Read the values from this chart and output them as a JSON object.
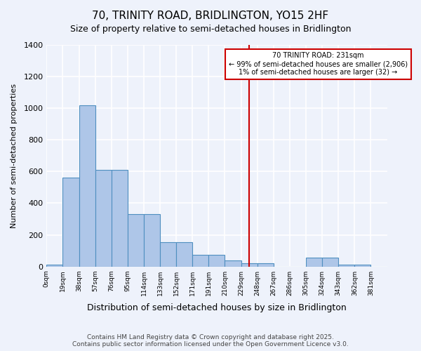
{
  "title": "70, TRINITY ROAD, BRIDLINGTON, YO15 2HF",
  "subtitle": "Size of property relative to semi-detached houses in Bridlington",
  "xlabel": "Distribution of semi-detached houses by size in Bridlington",
  "ylabel": "Number of semi-detached properties",
  "bin_labels": [
    "0sqm",
    "19sqm",
    "38sqm",
    "57sqm",
    "76sqm",
    "95sqm",
    "114sqm",
    "133sqm",
    "152sqm",
    "171sqm",
    "191sqm",
    "210sqm",
    "229sqm",
    "248sqm",
    "267sqm",
    "286sqm",
    "305sqm",
    "324sqm",
    "343sqm",
    "362sqm",
    "381sqm"
  ],
  "bar_heights": [
    10,
    560,
    1020,
    610,
    610,
    330,
    330,
    155,
    155,
    75,
    75,
    40,
    20,
    20,
    0,
    0,
    55,
    55,
    10,
    10,
    0
  ],
  "bar_color": "#aec6e8",
  "bar_edge_color": "#4f8fc0",
  "background_color": "#eef2fb",
  "grid_color": "#ffffff",
  "vline_x": 12,
  "vline_color": "#cc0000",
  "property_size": "231sqm",
  "property_label": "70 TRINITY ROAD: 231sqm",
  "pct_smaller": "99% of semi-detached houses are smaller (2,906)",
  "pct_larger": "1% of semi-detached houses are larger (32)",
  "annotation_box_color": "#cc0000",
  "ylim": [
    0,
    1400
  ],
  "yticks": [
    0,
    200,
    400,
    600,
    800,
    1000,
    1200,
    1400
  ],
  "footer_line1": "Contains HM Land Registry data © Crown copyright and database right 2025.",
  "footer_line2": "Contains public sector information licensed under the Open Government Licence v3.0."
}
